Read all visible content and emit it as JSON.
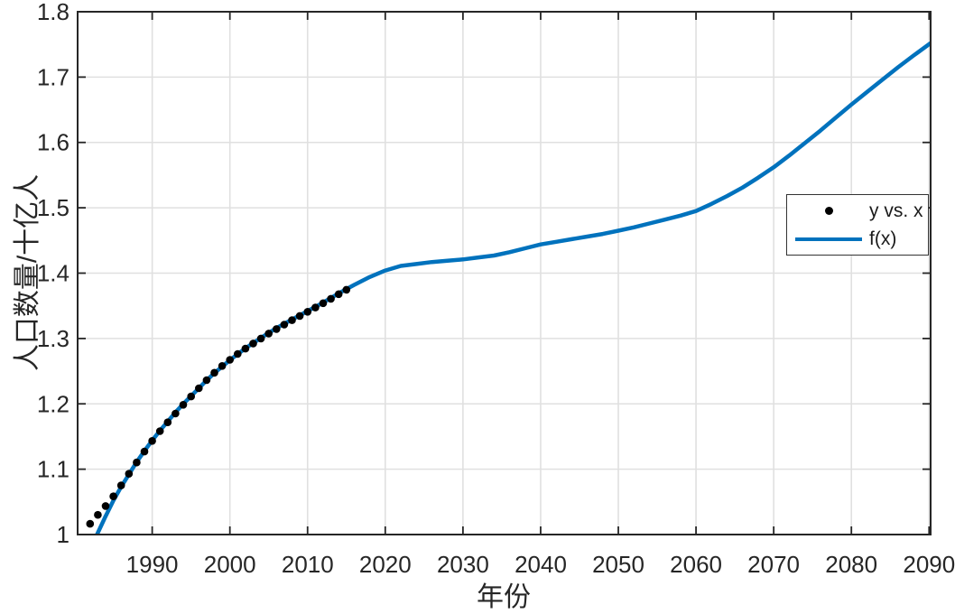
{
  "chart_data": {
    "type": "scatter",
    "title": "",
    "xlabel": "年份",
    "ylabel": "人口数量/十亿人",
    "xlim": [
      1980.4,
      2090.2
    ],
    "ylim": [
      1.0,
      1.8
    ],
    "xticks": [
      1990,
      2000,
      2010,
      2020,
      2030,
      2040,
      2050,
      2060,
      2070,
      2080,
      2090
    ],
    "yticks": [
      1,
      1.1,
      1.2,
      1.3,
      1.4,
      1.5,
      1.6,
      1.7,
      1.8
    ],
    "grid": true,
    "legend": {
      "position": "northeast",
      "entries": [
        {
          "label": "y vs. x",
          "swatch": "dot",
          "color": "#000000"
        },
        {
          "label": "f(x)",
          "swatch": "line",
          "color": "#0072bd"
        }
      ]
    },
    "colors": {
      "fit_line": "#0072bd",
      "data_points": "#000000",
      "grid_line": "#e0e0e0",
      "axis": "#262626",
      "tick_label": "#262626",
      "background": "#ffffff"
    },
    "series": [
      {
        "name": "y vs. x",
        "type": "scatter",
        "color": "#000000",
        "x": [
          1982,
          1983,
          1984,
          1985,
          1986,
          1987,
          1988,
          1989,
          1990,
          1991,
          1992,
          1993,
          1994,
          1995,
          1996,
          1997,
          1998,
          1999,
          2000,
          2001,
          2002,
          2003,
          2004,
          2005,
          2006,
          2007,
          2008,
          2009,
          2010,
          2011,
          2012,
          2013,
          2014,
          2015
        ],
        "y": [
          1.0165,
          1.0301,
          1.0436,
          1.0585,
          1.0751,
          1.093,
          1.1103,
          1.127,
          1.1433,
          1.1582,
          1.1717,
          1.1852,
          1.1985,
          1.2112,
          1.2239,
          1.2363,
          1.2476,
          1.2579,
          1.2674,
          1.2763,
          1.2845,
          1.2923,
          1.2999,
          1.3076,
          1.3145,
          1.3213,
          1.328,
          1.3345,
          1.3409,
          1.3474,
          1.354,
          1.3607,
          1.3678,
          1.3746
        ]
      },
      {
        "name": "f(x)",
        "type": "line",
        "color": "#0072bd",
        "x": [
          1980.4,
          1982,
          1982.9,
          1984,
          1985,
          1986,
          1987,
          1988,
          1989,
          1990,
          1991,
          1992,
          1993,
          1994,
          1995,
          1996,
          1997,
          1998,
          1999,
          2000,
          2002,
          2004,
          2006,
          2008,
          2010,
          2012,
          2014,
          2016,
          2018,
          2020,
          2022,
          2024,
          2026,
          2028,
          2030,
          2032,
          2034,
          2036,
          2038,
          2040,
          2042,
          2044,
          2046,
          2048,
          2050,
          2052,
          2054,
          2056,
          2058,
          2060,
          2062,
          2064,
          2066,
          2068,
          2070,
          2072,
          2074,
          2076,
          2078,
          2080,
          2082,
          2084,
          2086,
          2088,
          2090.2
        ],
        "y": [
          0.925,
          0.975,
          1.0,
          1.028,
          1.052,
          1.073,
          1.092,
          1.111,
          1.128,
          1.144,
          1.159,
          1.173,
          1.187,
          1.2,
          1.212,
          1.224,
          1.236,
          1.247,
          1.257,
          1.267,
          1.285,
          1.301,
          1.316,
          1.329,
          1.342,
          1.355,
          1.369,
          1.382,
          1.394,
          1.404,
          1.411,
          1.414,
          1.417,
          1.419,
          1.421,
          1.424,
          1.427,
          1.432,
          1.438,
          1.444,
          1.448,
          1.452,
          1.456,
          1.46,
          1.465,
          1.47,
          1.476,
          1.482,
          1.488,
          1.495,
          1.506,
          1.518,
          1.531,
          1.546,
          1.562,
          1.58,
          1.599,
          1.618,
          1.638,
          1.658,
          1.677,
          1.696,
          1.715,
          1.733,
          1.752
        ]
      }
    ]
  }
}
